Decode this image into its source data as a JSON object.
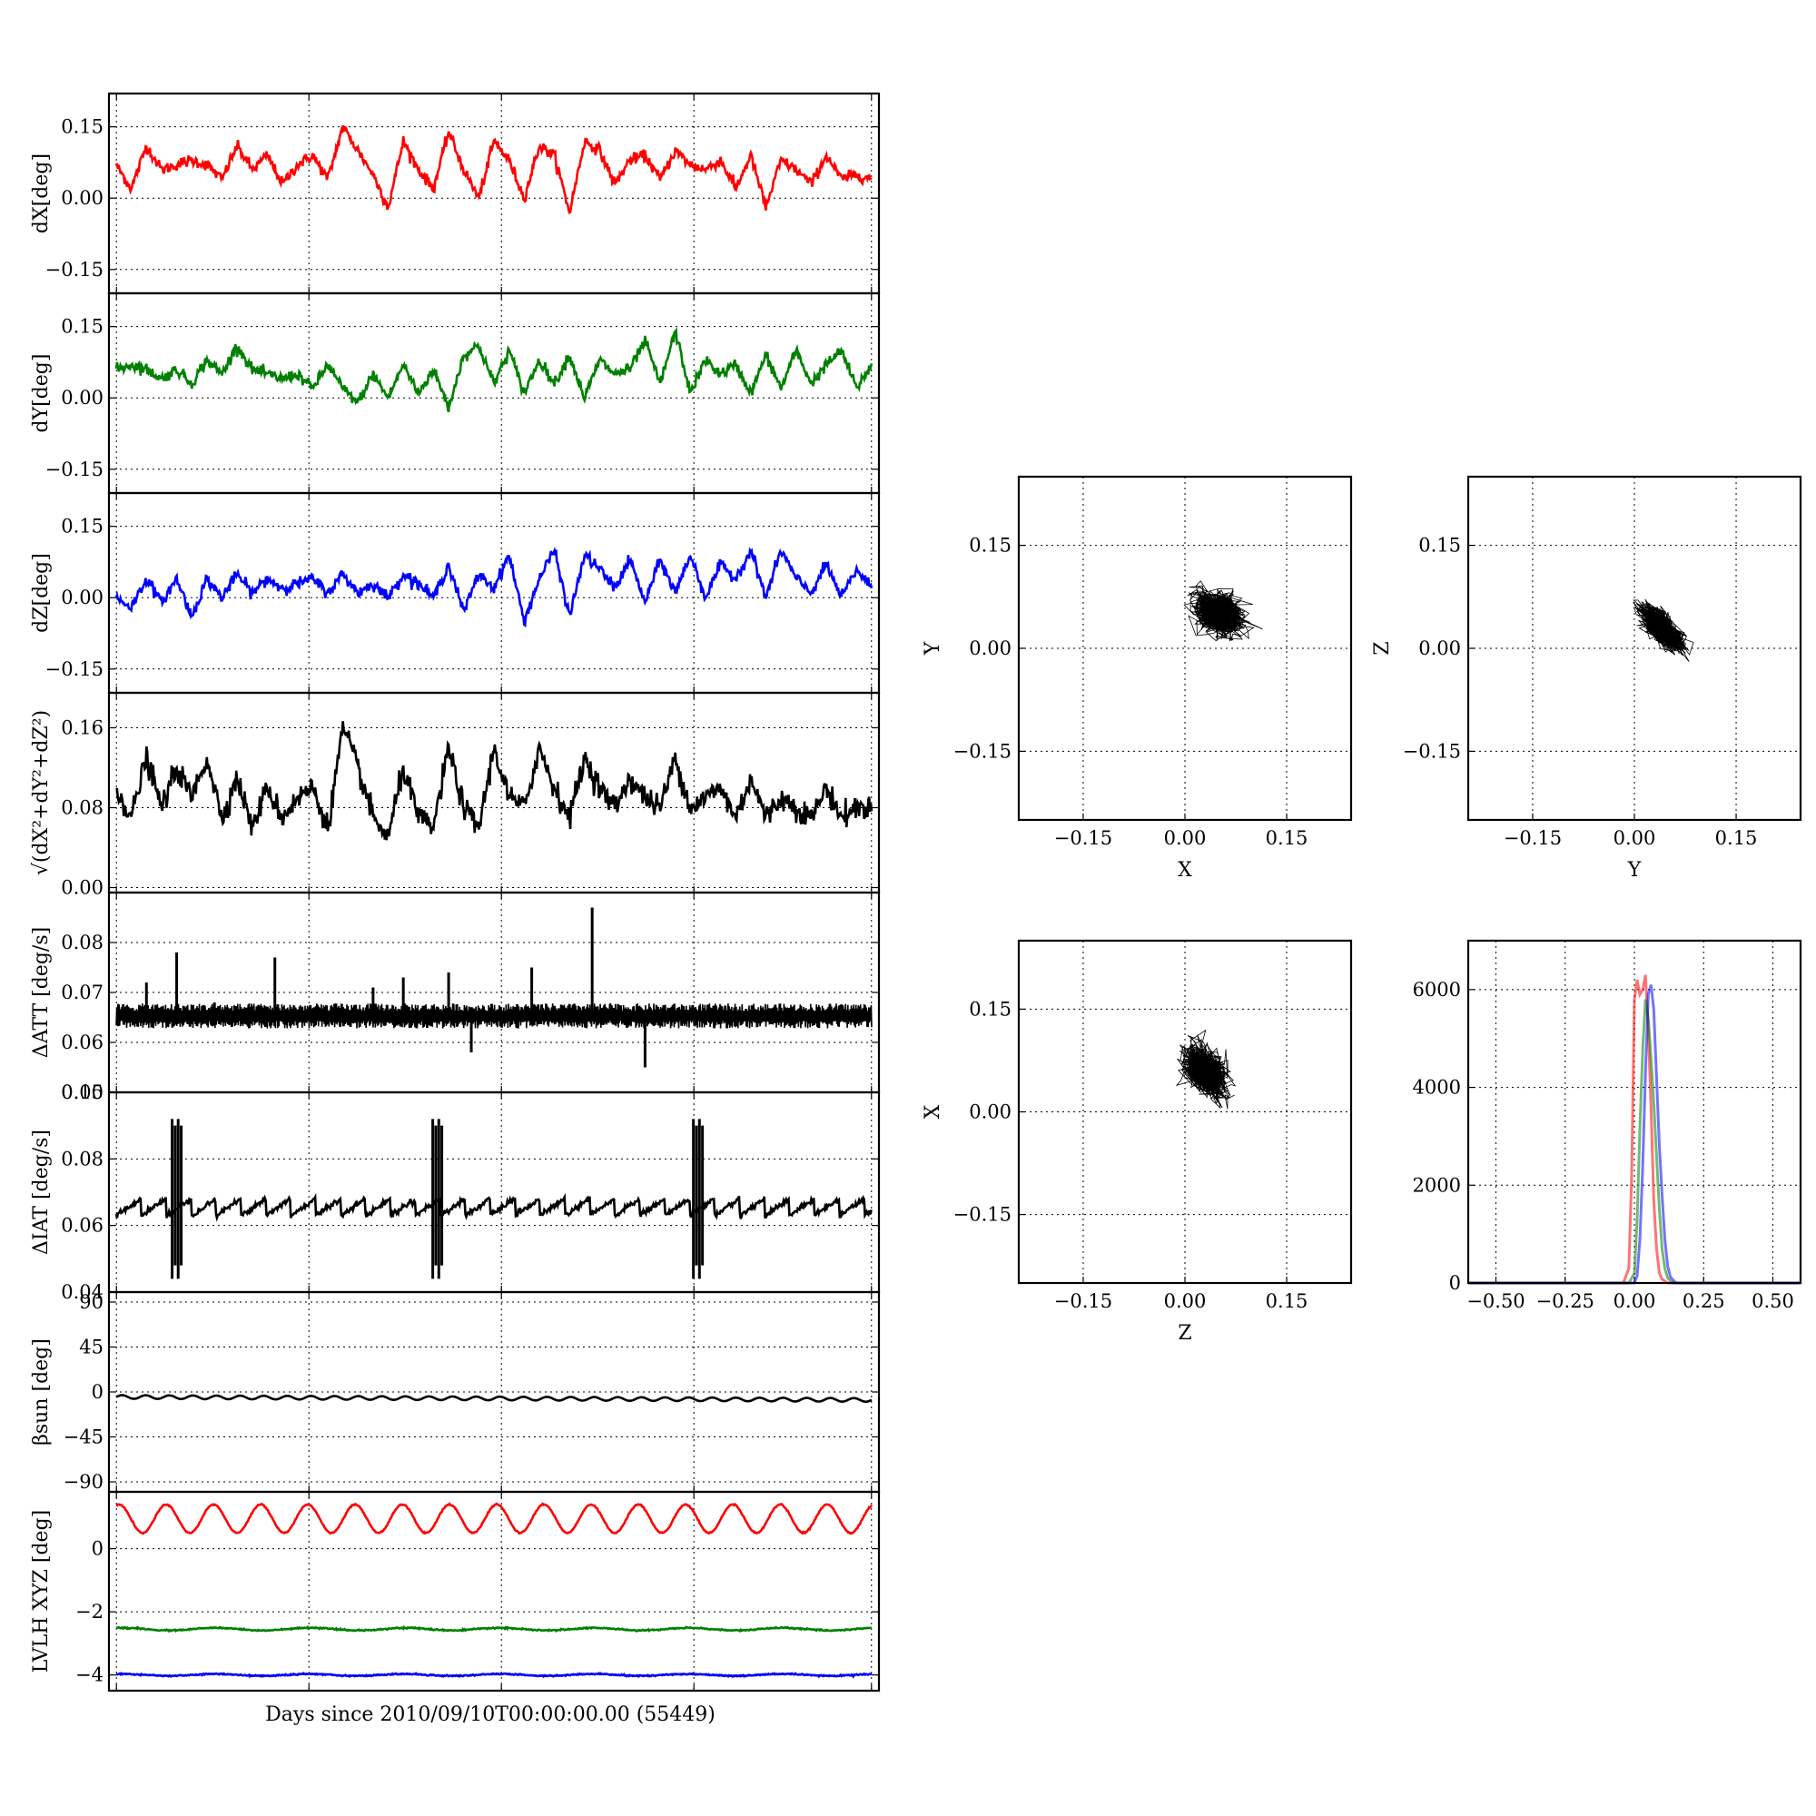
{
  "figure": {
    "xlabel": "Days since 2010/09/10T00:00:00.00 (55449)"
  },
  "colors": {
    "red": "#ff0000",
    "green": "#008000",
    "blue": "#0000ff",
    "black": "#000000"
  },
  "chart_data": [
    {
      "id": "dX",
      "type": "line",
      "ylabel": "dX[deg]",
      "ylim": [
        -0.2,
        0.22
      ],
      "yticks": [
        0.15,
        0.0,
        -0.15
      ],
      "yticklabels": [
        "0.15",
        "0.00",
        "−0.15"
      ],
      "xlim": [
        0,
        1
      ],
      "grid": true,
      "series": [
        {
          "color": "#ff0000",
          "x": [
            0,
            0.02,
            0.04,
            0.06,
            0.08,
            0.1,
            0.12,
            0.14,
            0.16,
            0.18,
            0.2,
            0.22,
            0.24,
            0.26,
            0.28,
            0.3,
            0.32,
            0.34,
            0.36,
            0.38,
            0.4,
            0.42,
            0.44,
            0.46,
            0.48,
            0.5,
            0.52,
            0.54,
            0.56,
            0.58,
            0.6,
            0.62,
            0.64,
            0.66,
            0.68,
            0.7,
            0.72,
            0.74,
            0.76,
            0.78,
            0.8,
            0.82,
            0.84,
            0.86,
            0.88,
            0.9,
            0.92,
            0.94,
            0.96,
            0.98,
            1.0
          ],
          "y": [
            0.07,
            0.02,
            0.11,
            0.06,
            0.07,
            0.08,
            0.07,
            0.04,
            0.11,
            0.06,
            0.09,
            0.03,
            0.07,
            0.09,
            0.04,
            0.15,
            0.1,
            0.05,
            -0.02,
            0.12,
            0.06,
            0.02,
            0.14,
            0.06,
            0.0,
            0.12,
            0.08,
            0.0,
            0.11,
            0.09,
            -0.03,
            0.12,
            0.1,
            0.03,
            0.08,
            0.09,
            0.04,
            0.1,
            0.07,
            0.06,
            0.08,
            0.02,
            0.09,
            -0.02,
            0.08,
            0.06,
            0.03,
            0.09,
            0.04,
            0.05,
            0.04
          ]
        }
      ]
    },
    {
      "id": "dY",
      "type": "line",
      "ylabel": "dY[deg]",
      "ylim": [
        -0.2,
        0.22
      ],
      "yticks": [
        0.15,
        0.0,
        -0.15
      ],
      "yticklabels": [
        "0.15",
        "0.00",
        "−0.15"
      ],
      "xlim": [
        0,
        1
      ],
      "grid": true,
      "series": [
        {
          "color": "#008000",
          "x": [
            0,
            0.02,
            0.04,
            0.06,
            0.08,
            0.1,
            0.12,
            0.14,
            0.16,
            0.18,
            0.2,
            0.22,
            0.24,
            0.26,
            0.28,
            0.3,
            0.32,
            0.34,
            0.36,
            0.38,
            0.4,
            0.42,
            0.44,
            0.46,
            0.48,
            0.5,
            0.52,
            0.54,
            0.56,
            0.58,
            0.6,
            0.62,
            0.64,
            0.66,
            0.68,
            0.7,
            0.72,
            0.74,
            0.76,
            0.78,
            0.8,
            0.82,
            0.84,
            0.86,
            0.88,
            0.9,
            0.92,
            0.94,
            0.96,
            0.98,
            1.0
          ],
          "y": [
            0.06,
            0.07,
            0.06,
            0.04,
            0.06,
            0.03,
            0.08,
            0.05,
            0.11,
            0.06,
            0.05,
            0.04,
            0.05,
            0.02,
            0.07,
            0.02,
            -0.01,
            0.05,
            0.0,
            0.07,
            0.01,
            0.06,
            -0.02,
            0.09,
            0.11,
            0.03,
            0.1,
            0.01,
            0.08,
            0.03,
            0.09,
            0.0,
            0.08,
            0.05,
            0.06,
            0.12,
            0.03,
            0.14,
            0.01,
            0.08,
            0.05,
            0.07,
            0.01,
            0.09,
            0.02,
            0.1,
            0.03,
            0.07,
            0.1,
            0.02,
            0.07
          ]
        }
      ]
    },
    {
      "id": "dZ",
      "type": "line",
      "ylabel": "dZ[deg]",
      "ylim": [
        -0.2,
        0.22
      ],
      "yticks": [
        0.15,
        0.0,
        -0.15
      ],
      "yticklabels": [
        "0.15",
        "0.00",
        "−0.15"
      ],
      "xlim": [
        0,
        1
      ],
      "grid": true,
      "series": [
        {
          "color": "#0000ff",
          "x": [
            0,
            0.02,
            0.04,
            0.06,
            0.08,
            0.1,
            0.12,
            0.14,
            0.16,
            0.18,
            0.2,
            0.22,
            0.24,
            0.26,
            0.28,
            0.3,
            0.32,
            0.34,
            0.36,
            0.38,
            0.4,
            0.42,
            0.44,
            0.46,
            0.48,
            0.5,
            0.52,
            0.54,
            0.56,
            0.58,
            0.6,
            0.62,
            0.64,
            0.66,
            0.68,
            0.7,
            0.72,
            0.74,
            0.76,
            0.78,
            0.8,
            0.82,
            0.84,
            0.86,
            0.88,
            0.9,
            0.92,
            0.94,
            0.96,
            0.98,
            1.0
          ],
          "y": [
            0.0,
            -0.02,
            0.04,
            -0.01,
            0.04,
            -0.04,
            0.04,
            0.0,
            0.05,
            0.01,
            0.04,
            0.02,
            0.03,
            0.04,
            0.01,
            0.05,
            0.01,
            0.03,
            0.0,
            0.05,
            0.03,
            0.0,
            0.07,
            -0.03,
            0.05,
            0.02,
            0.09,
            -0.05,
            0.04,
            0.1,
            -0.04,
            0.09,
            0.06,
            0.02,
            0.08,
            -0.01,
            0.08,
            0.01,
            0.09,
            0.0,
            0.07,
            0.04,
            0.1,
            0.0,
            0.1,
            0.04,
            0.01,
            0.07,
            0.0,
            0.06,
            0.02
          ]
        }
      ]
    },
    {
      "id": "dR",
      "type": "line",
      "ylabel": "√(dX²+dY²+dZ²)",
      "ylim": [
        -0.005,
        0.195
      ],
      "yticks": [
        0.16,
        0.08,
        0.0
      ],
      "yticklabels": [
        "0.16",
        "0.08",
        "0.00"
      ],
      "xlim": [
        0,
        1
      ],
      "grid": true,
      "series": [
        {
          "color": "#000000",
          "x": [
            0,
            0.02,
            0.04,
            0.06,
            0.08,
            0.1,
            0.12,
            0.14,
            0.16,
            0.18,
            0.2,
            0.22,
            0.24,
            0.26,
            0.28,
            0.3,
            0.32,
            0.34,
            0.36,
            0.38,
            0.4,
            0.42,
            0.44,
            0.46,
            0.48,
            0.5,
            0.52,
            0.54,
            0.56,
            0.58,
            0.6,
            0.62,
            0.64,
            0.66,
            0.68,
            0.7,
            0.72,
            0.74,
            0.76,
            0.78,
            0.8,
            0.82,
            0.84,
            0.86,
            0.88,
            0.9,
            0.92,
            0.94,
            0.96,
            0.98,
            1.0
          ],
          "y": [
            0.1,
            0.07,
            0.13,
            0.08,
            0.12,
            0.09,
            0.13,
            0.07,
            0.11,
            0.06,
            0.1,
            0.07,
            0.09,
            0.1,
            0.06,
            0.16,
            0.12,
            0.07,
            0.05,
            0.12,
            0.07,
            0.06,
            0.14,
            0.08,
            0.06,
            0.14,
            0.09,
            0.08,
            0.14,
            0.1,
            0.07,
            0.13,
            0.1,
            0.08,
            0.11,
            0.09,
            0.08,
            0.13,
            0.08,
            0.09,
            0.1,
            0.07,
            0.11,
            0.07,
            0.09,
            0.08,
            0.07,
            0.1,
            0.07,
            0.08,
            0.08
          ]
        }
      ]
    },
    {
      "id": "dATT",
      "type": "line",
      "ylabel": "ΔATT [deg/s]",
      "ylim": [
        0.05,
        0.09
      ],
      "yticks": [
        0.08,
        0.07,
        0.06,
        0.05
      ],
      "yticklabels": [
        "0.08",
        "0.07",
        "0.06",
        "0.05"
      ],
      "xlim": [
        0,
        1
      ],
      "grid": true,
      "baseline": 0.0653,
      "band": 0.0025,
      "spikes": [
        [
          0.04,
          0.072
        ],
        [
          0.08,
          0.078
        ],
        [
          0.21,
          0.077
        ],
        [
          0.38,
          0.073
        ],
        [
          0.44,
          0.074
        ],
        [
          0.47,
          0.058
        ],
        [
          0.55,
          0.075
        ],
        [
          0.63,
          0.087
        ],
        [
          0.7,
          0.055
        ],
        [
          0.13,
          0.068
        ],
        [
          0.34,
          0.071
        ]
      ],
      "series": [
        {
          "color": "#000000"
        }
      ]
    },
    {
      "id": "dIAT",
      "type": "line",
      "ylabel": "ΔIAT [deg/s]",
      "ylim": [
        0.04,
        0.1
      ],
      "yticks": [
        0.1,
        0.08,
        0.06,
        0.04
      ],
      "yticklabels": [
        "0.10",
        "0.08",
        "0.06",
        "0.04"
      ],
      "xlim": [
        0,
        1
      ],
      "grid": true,
      "sawtooth": {
        "low": 0.063,
        "high": 0.068,
        "period": 0.033
      },
      "bursts": [
        0.08,
        0.425,
        0.77
      ],
      "burst_range": [
        0.044,
        0.092
      ],
      "series": [
        {
          "color": "#000000"
        }
      ]
    },
    {
      "id": "beta",
      "type": "line",
      "ylabel": "βsun [deg]",
      "ylim": [
        -100,
        100
      ],
      "yticks": [
        90,
        45,
        0,
        -45,
        -90
      ],
      "yticklabels": [
        "90",
        "45",
        "0",
        "−45",
        "−90"
      ],
      "xlim": [
        0,
        1
      ],
      "grid": true,
      "wave": {
        "center": -5,
        "amp": 1.8,
        "cycles": 32,
        "drift": -3
      },
      "series": [
        {
          "color": "#000000"
        }
      ]
    },
    {
      "id": "lvlh",
      "type": "line",
      "ylabel": "LVLH XYZ [deg]",
      "ylim": [
        -4.5,
        1.8
      ],
      "yticks": [
        0,
        -2,
        -4
      ],
      "yticklabels": [
        "0",
        "−2",
        "−4"
      ],
      "xlim": [
        0,
        1
      ],
      "grid": true,
      "waves": [
        {
          "color": "#ff0000",
          "center": 0.95,
          "amp": 0.45,
          "cycles": 16
        },
        {
          "color": "#008000",
          "center": -2.55,
          "amp": 0.04,
          "cycles": 8
        },
        {
          "color": "#0000ff",
          "center": -4.0,
          "amp": 0.03,
          "cycles": 8
        }
      ],
      "series": []
    },
    {
      "id": "scatXY",
      "type": "scatter",
      "xlabel": "X",
      "ylabel": "Y",
      "xlim": [
        -0.245,
        0.245
      ],
      "ylim": [
        -0.25,
        0.25
      ],
      "ticks": [
        -0.15,
        0.0,
        0.15
      ],
      "ticklabels": [
        "−0.15",
        "0.00",
        "0.15"
      ],
      "cloud": {
        "cx": 0.05,
        "cy": 0.05,
        "sx": 0.035,
        "sy": 0.03,
        "rho": -0.3
      },
      "grid": true
    },
    {
      "id": "scatYZ",
      "type": "scatter",
      "xlabel": "Y",
      "ylabel": "Z",
      "xlim": [
        -0.245,
        0.245
      ],
      "ylim": [
        -0.25,
        0.25
      ],
      "ticks": [
        -0.15,
        0.0,
        0.15
      ],
      "ticklabels": [
        "−0.15",
        "0.00",
        "0.15"
      ],
      "cloud": {
        "cx": 0.04,
        "cy": 0.03,
        "sx": 0.03,
        "sy": 0.03,
        "rho": -0.7
      },
      "grid": true
    },
    {
      "id": "scatZX",
      "type": "scatter",
      "xlabel": "Z",
      "ylabel": "X",
      "xlim": [
        -0.245,
        0.245
      ],
      "ylim": [
        -0.25,
        0.25
      ],
      "ticks": [
        -0.15,
        0.0,
        0.15
      ],
      "ticklabels": [
        "−0.15",
        "0.00",
        "0.15"
      ],
      "cloud": {
        "cx": 0.03,
        "cy": 0.06,
        "sx": 0.03,
        "sy": 0.035,
        "rho": -0.4
      },
      "grid": true
    },
    {
      "id": "hist",
      "type": "line",
      "xlim": [
        -0.6,
        0.6
      ],
      "ylim": [
        0,
        7000
      ],
      "xticks": [
        -0.5,
        -0.25,
        0.0,
        0.25,
        0.5
      ],
      "xticklabels": [
        "−0.50",
        "−0.25",
        "0.00",
        "0.25",
        "0.50"
      ],
      "yticks": [
        0,
        2000,
        4000,
        6000
      ],
      "yticklabels": [
        "0",
        "2000",
        "4000",
        "6000"
      ],
      "grid": true,
      "series": [
        {
          "color": "#ff0000",
          "x": [
            -0.6,
            -0.04,
            -0.02,
            -0.01,
            0.0,
            0.01,
            0.02,
            0.03,
            0.04,
            0.05,
            0.06,
            0.07,
            0.08,
            0.09,
            0.1,
            0.12,
            0.6
          ],
          "y": [
            0,
            0,
            300,
            2200,
            5800,
            6200,
            5900,
            6000,
            6300,
            5200,
            3600,
            1700,
            700,
            200,
            80,
            0,
            0
          ]
        },
        {
          "color": "#008000",
          "x": [
            -0.6,
            -0.02,
            0.0,
            0.01,
            0.02,
            0.03,
            0.04,
            0.05,
            0.06,
            0.07,
            0.08,
            0.09,
            0.1,
            0.11,
            0.12,
            0.14,
            0.6
          ],
          "y": [
            0,
            0,
            200,
            1300,
            3200,
            4800,
            5800,
            5400,
            4600,
            3700,
            2600,
            1500,
            700,
            300,
            100,
            0,
            0
          ]
        },
        {
          "color": "#0000ff",
          "x": [
            -0.6,
            0.0,
            0.01,
            0.02,
            0.03,
            0.04,
            0.05,
            0.06,
            0.07,
            0.08,
            0.09,
            0.1,
            0.11,
            0.12,
            0.13,
            0.15,
            0.6
          ],
          "y": [
            0,
            0,
            150,
            900,
            2400,
            4300,
            5900,
            6100,
            5600,
            4200,
            2800,
            1800,
            900,
            350,
            120,
            0,
            0
          ]
        }
      ]
    }
  ]
}
